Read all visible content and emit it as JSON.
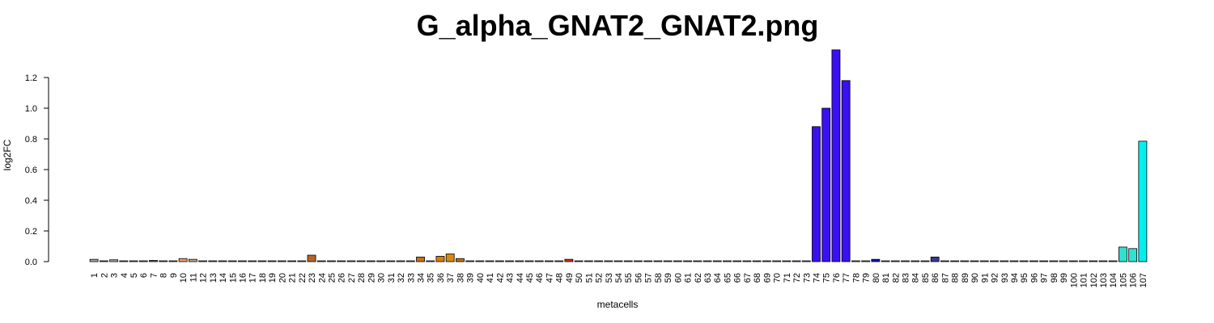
{
  "chart_data": {
    "type": "bar",
    "title": "G_alpha_GNAT2_GNAT2.png",
    "xlabel": "metacells",
    "ylabel": "log2FC",
    "ylim": [
      0,
      1.4
    ],
    "yticks": [
      "0.0",
      "0.2",
      "0.4",
      "0.6",
      "0.8",
      "1.0",
      "1.2"
    ],
    "categories": [
      "1",
      "2",
      "3",
      "4",
      "5",
      "6",
      "7",
      "8",
      "9",
      "10",
      "11",
      "12",
      "13",
      "14",
      "15",
      "16",
      "17",
      "18",
      "19",
      "20",
      "21",
      "22",
      "23",
      "24",
      "25",
      "26",
      "27",
      "28",
      "29",
      "30",
      "31",
      "32",
      "33",
      "34",
      "35",
      "36",
      "37",
      "38",
      "39",
      "40",
      "41",
      "42",
      "43",
      "44",
      "45",
      "46",
      "47",
      "48",
      "49",
      "50",
      "51",
      "52",
      "53",
      "54",
      "55",
      "56",
      "57",
      "58",
      "59",
      "60",
      "61",
      "62",
      "63",
      "64",
      "65",
      "66",
      "67",
      "68",
      "69",
      "70",
      "71",
      "72",
      "73",
      "74",
      "75",
      "76",
      "77",
      "78",
      "79",
      "80",
      "81",
      "82",
      "83",
      "84",
      "85",
      "86",
      "87",
      "88",
      "89",
      "90",
      "91",
      "92",
      "93",
      "94",
      "95",
      "96",
      "97",
      "98",
      "99",
      "100",
      "101",
      "102",
      "103",
      "104",
      "105",
      "106",
      "107"
    ],
    "values": [
      0.015,
      0.005,
      0.012,
      0,
      0,
      0,
      0.008,
      0,
      0,
      0.02,
      0.015,
      0,
      0,
      0,
      0,
      0,
      0,
      0,
      0,
      0,
      0,
      0,
      0.042,
      0,
      0,
      0,
      0,
      0,
      0,
      0,
      0,
      0,
      0,
      0.03,
      0.005,
      0.035,
      0.05,
      0.02,
      0,
      0,
      0,
      0,
      0,
      0,
      0,
      0,
      0,
      0,
      0.015,
      0,
      0,
      0,
      0,
      0,
      0,
      0,
      0,
      0,
      0,
      0,
      0,
      0,
      0,
      0,
      0,
      0,
      0,
      0,
      0,
      0,
      0,
      0,
      0,
      0.88,
      1.0,
      1.38,
      1.18,
      0,
      0,
      0.015,
      0,
      0,
      0,
      0,
      0,
      0.03,
      0,
      0,
      0,
      0,
      0,
      0,
      0,
      0,
      0,
      0,
      0,
      0,
      0,
      0,
      0,
      0,
      0,
      0,
      0.095,
      0.085,
      0.785
    ],
    "colors": [
      "#aaaaaa",
      "#aaaaaa",
      "#aaaaaa",
      "#aaaaaa",
      "#aaaaaa",
      "#aaaaaa",
      "#8a5a4a",
      "#aaaaaa",
      "#aaaaaa",
      "#e6a070",
      "#c8a890",
      "#aaaaaa",
      "#aaaaaa",
      "#aaaaaa",
      "#aaaaaa",
      "#aaaaaa",
      "#aaaaaa",
      "#aaaaaa",
      "#aaaaaa",
      "#aaaaaa",
      "#aaaaaa",
      "#aaaaaa",
      "#b5652a",
      "#aaaaaa",
      "#aaaaaa",
      "#aaaaaa",
      "#aaaaaa",
      "#aaaaaa",
      "#aaaaaa",
      "#aaaaaa",
      "#aaaaaa",
      "#aaaaaa",
      "#aaaaaa",
      "#c87010",
      "#aaaaaa",
      "#d87f10",
      "#d88a10",
      "#c87010",
      "#aaaaaa",
      "#aaaaaa",
      "#aaaaaa",
      "#aaaaaa",
      "#aaaaaa",
      "#aaaaaa",
      "#aaaaaa",
      "#aaaaaa",
      "#aaaaaa",
      "#aaaaaa",
      "#d83010",
      "#aaaaaa",
      "#aaaaaa",
      "#aaaaaa",
      "#aaaaaa",
      "#aaaaaa",
      "#aaaaaa",
      "#aaaaaa",
      "#aaaaaa",
      "#aaaaaa",
      "#aaaaaa",
      "#aaaaaa",
      "#aaaaaa",
      "#aaaaaa",
      "#aaaaaa",
      "#aaaaaa",
      "#aaaaaa",
      "#aaaaaa",
      "#aaaaaa",
      "#aaaaaa",
      "#aaaaaa",
      "#aaaaaa",
      "#aaaaaa",
      "#aaaaaa",
      "#aaaaaa",
      "#3a10f0",
      "#3a10f0",
      "#3a10f0",
      "#3a10f0",
      "#aaaaaa",
      "#aaaaaa",
      "#1010c0",
      "#aaaaaa",
      "#aaaaaa",
      "#aaaaaa",
      "#aaaaaa",
      "#aaaaaa",
      "#3a3a90",
      "#aaaaaa",
      "#aaaaaa",
      "#aaaaaa",
      "#aaaaaa",
      "#aaaaaa",
      "#aaaaaa",
      "#aaaaaa",
      "#aaaaaa",
      "#aaaaaa",
      "#aaaaaa",
      "#aaaaaa",
      "#aaaaaa",
      "#aaaaaa",
      "#aaaaaa",
      "#aaaaaa",
      "#aaaaaa",
      "#aaaaaa",
      "#aaaaaa",
      "#30e0d0",
      "#30e0d0",
      "#00f0f0"
    ],
    "grid": false,
    "legend": "none"
  }
}
